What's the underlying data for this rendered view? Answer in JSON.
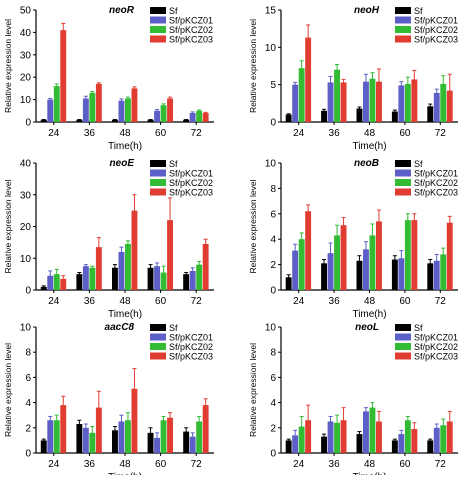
{
  "chart_data": [
    {
      "type": "bar",
      "title": "neoR",
      "xlabel": "Time(h)",
      "ylabel": "Relative expression level",
      "categories": [
        "24",
        "36",
        "48",
        "60",
        "72"
      ],
      "ylim": [
        0,
        50
      ],
      "yticks": [
        0,
        10,
        20,
        30,
        40,
        50
      ],
      "legend_position": "top-right",
      "series": [
        {
          "name": "Sf",
          "values": [
            1,
            1,
            1,
            1,
            1
          ],
          "errors": [
            0.1,
            0.1,
            0.1,
            0.1,
            0.1
          ]
        },
        {
          "name": "Sf/pKCZ01",
          "values": [
            10,
            10.5,
            9.5,
            5,
            4
          ],
          "errors": [
            0.5,
            1,
            0.8,
            0.6,
            0.5
          ]
        },
        {
          "name": "Sf/pKCZ02",
          "values": [
            16,
            13,
            10.5,
            7.5,
            5
          ],
          "errors": [
            1,
            0.6,
            0.6,
            0.6,
            0.4
          ]
        },
        {
          "name": "Sf/pKCZ03",
          "values": [
            41,
            17,
            15,
            10.5,
            4
          ],
          "errors": [
            3,
            0.5,
            0.7,
            0.6,
            0.3
          ]
        }
      ]
    },
    {
      "type": "bar",
      "title": "neoH",
      "xlabel": "Time(h)",
      "ylabel": "Relative expression level",
      "categories": [
        "24",
        "36",
        "48",
        "60",
        "72"
      ],
      "ylim": [
        0,
        15
      ],
      "yticks": [
        0,
        5,
        10,
        15
      ],
      "legend_position": "top-right",
      "series": [
        {
          "name": "Sf",
          "values": [
            1,
            1.5,
            1.8,
            1.4,
            2.1
          ],
          "errors": [
            0.1,
            0.2,
            0.2,
            0.2,
            0.3
          ]
        },
        {
          "name": "Sf/pKCZ01",
          "values": [
            5,
            5.3,
            5.4,
            4.9,
            3.9
          ],
          "errors": [
            0.3,
            0.8,
            1,
            0.5,
            0.5
          ]
        },
        {
          "name": "Sf/pKCZ02",
          "values": [
            7.2,
            7,
            5.8,
            5.1,
            5.1
          ],
          "errors": [
            1,
            0.7,
            0.8,
            0.9,
            1.1
          ]
        },
        {
          "name": "Sf/pKCZ03",
          "values": [
            11.3,
            5.3,
            5.4,
            5.7,
            4.2
          ],
          "errors": [
            1.7,
            0.4,
            1.7,
            1.2,
            2.2
          ]
        }
      ]
    },
    {
      "type": "bar",
      "title": "neoE",
      "xlabel": "Time(h)",
      "ylabel": "Relative expression level",
      "categories": [
        "24",
        "36",
        "48",
        "60",
        "72"
      ],
      "ylim": [
        0,
        40
      ],
      "yticks": [
        0,
        10,
        20,
        30,
        40
      ],
      "legend_position": "top-right",
      "series": [
        {
          "name": "Sf",
          "values": [
            1,
            5,
            7,
            7,
            5
          ],
          "errors": [
            0.3,
            0.5,
            1,
            1,
            0.5
          ]
        },
        {
          "name": "Sf/pKCZ01",
          "values": [
            4.5,
            7.5,
            12,
            7.5,
            6
          ],
          "errors": [
            1.5,
            0.5,
            1.5,
            1,
            1
          ]
        },
        {
          "name": "Sf/pKCZ02",
          "values": [
            5,
            7,
            14.5,
            5.5,
            8
          ],
          "errors": [
            1.5,
            0.5,
            1,
            2,
            1
          ]
        },
        {
          "name": "Sf/pKCZ03",
          "values": [
            3.5,
            13.5,
            25,
            22,
            14.5
          ],
          "errors": [
            1,
            3,
            5,
            7,
            1.5
          ]
        }
      ]
    },
    {
      "type": "bar",
      "title": "neoB",
      "xlabel": "Time(h)",
      "ylabel": "Relative expression level",
      "categories": [
        "24",
        "36",
        "48",
        "60",
        "72"
      ],
      "ylim": [
        0,
        10
      ],
      "yticks": [
        0,
        2,
        4,
        6,
        8,
        10
      ],
      "legend_position": "top-right",
      "series": [
        {
          "name": "Sf",
          "values": [
            1,
            2.1,
            2.3,
            2.4,
            2.1
          ],
          "errors": [
            0.2,
            0.3,
            0.4,
            0.3,
            0.3
          ]
        },
        {
          "name": "Sf/pKCZ01",
          "values": [
            3.1,
            2.9,
            3.2,
            2.5,
            2.3
          ],
          "errors": [
            0.5,
            0.8,
            0.6,
            0.6,
            0.5
          ]
        },
        {
          "name": "Sf/pKCZ02",
          "values": [
            4,
            4.3,
            4.3,
            5.5,
            2.8
          ],
          "errors": [
            0.5,
            0.8,
            0.9,
            0.5,
            0.5
          ]
        },
        {
          "name": "Sf/pKCZ03",
          "values": [
            6.2,
            5.1,
            5.4,
            5.5,
            5.3
          ],
          "errors": [
            0.5,
            0.6,
            0.9,
            0.5,
            0.5
          ]
        }
      ]
    },
    {
      "type": "bar",
      "title": "aacC8",
      "xlabel": "Time(h)",
      "ylabel": "Relative expression level",
      "categories": [
        "24",
        "36",
        "48",
        "60",
        "72"
      ],
      "ylim": [
        0,
        10
      ],
      "yticks": [
        0,
        2,
        4,
        6,
        8,
        10
      ],
      "legend_position": "top-right",
      "series": [
        {
          "name": "Sf",
          "values": [
            1,
            2.3,
            1.8,
            1.6,
            1.7
          ],
          "errors": [
            0.1,
            0.3,
            0.3,
            0.4,
            0.3
          ]
        },
        {
          "name": "Sf/pKCZ01",
          "values": [
            2.6,
            2,
            2.5,
            1.2,
            1.3
          ],
          "errors": [
            0.3,
            0.3,
            0.5,
            0.4,
            0.3
          ]
        },
        {
          "name": "Sf/pKCZ02",
          "values": [
            2.6,
            1.6,
            2.6,
            2.6,
            2.5
          ],
          "errors": [
            0.4,
            0.5,
            0.6,
            0.3,
            0.4
          ]
        },
        {
          "name": "Sf/pKCZ03",
          "values": [
            3.8,
            3.6,
            5.1,
            2.8,
            3.8
          ],
          "errors": [
            0.7,
            1.3,
            1.6,
            0.4,
            0.5
          ]
        }
      ]
    },
    {
      "type": "bar",
      "title": "neoL",
      "xlabel": "Time(h)",
      "ylabel": "Relative expression level",
      "categories": [
        "24",
        "36",
        "48",
        "60",
        "72"
      ],
      "ylim": [
        0,
        10
      ],
      "yticks": [
        0,
        2,
        4,
        6,
        8,
        10
      ],
      "legend_position": "top-right",
      "series": [
        {
          "name": "Sf",
          "values": [
            1,
            1.3,
            1.5,
            1,
            1
          ],
          "errors": [
            0.1,
            0.2,
            0.2,
            0.1,
            0.1
          ]
        },
        {
          "name": "Sf/pKCZ01",
          "values": [
            1.4,
            2.5,
            3.3,
            1.5,
            2
          ],
          "errors": [
            0.4,
            0.4,
            0.3,
            0.3,
            0.3
          ]
        },
        {
          "name": "Sf/pKCZ02",
          "values": [
            2.1,
            2.4,
            3.6,
            2.6,
            2.2
          ],
          "errors": [
            0.8,
            0.6,
            0.4,
            0.3,
            0.5
          ]
        },
        {
          "name": "Sf/pKCZ03",
          "values": [
            2.6,
            2.6,
            2.5,
            1.9,
            2.5
          ],
          "errors": [
            1.2,
            1,
            0.8,
            0.5,
            0.8
          ]
        }
      ]
    }
  ],
  "colors": {
    "Sf": "#000000",
    "Sf/pKCZ01": "#5b5fc7",
    "Sf/pKCZ02": "#33bb33",
    "Sf/pKCZ03": "#e03c31"
  }
}
